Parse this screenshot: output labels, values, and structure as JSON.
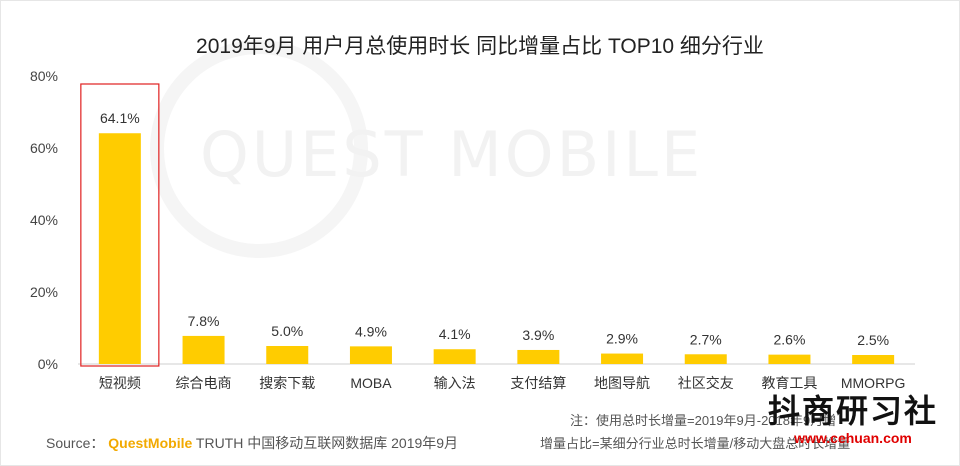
{
  "chart_data": {
    "type": "bar",
    "title": "2019年9月 用户月总使用时长 同比增量占比 TOP10 细分行业",
    "categories": [
      "短视频",
      "综合电商",
      "搜索下载",
      "MOBA",
      "输入法",
      "支付结算",
      "地图导航",
      "社区交友",
      "教育工具",
      "MMORPG"
    ],
    "values": [
      64.1,
      7.8,
      5.0,
      4.9,
      4.1,
      3.9,
      2.9,
      2.7,
      2.6,
      2.5
    ],
    "data_labels": [
      "64.1%",
      "7.8%",
      "5.0%",
      "4.9%",
      "4.1%",
      "3.9%",
      "2.9%",
      "2.7%",
      "2.6%",
      "2.5%"
    ],
    "ylim": [
      0,
      80
    ],
    "y_ticks": [
      "0%",
      "20%",
      "40%",
      "60%",
      "80%"
    ],
    "bar_color": "#FFCC00",
    "highlight_color": "#E02020",
    "highlight_index": 0,
    "grid": false
  },
  "watermark": "QUEST MOBILE",
  "notes": {
    "line1": "注：使用总时长增量=2019年9月-2018年9月增",
    "line2": "增量占比=某细分行业总时长增量/移动大盘总时长增量"
  },
  "source": {
    "label": "Source：",
    "brand": "QuestMobile",
    "text": "TRUTH 中国移动互联网数据库 2019年9月"
  },
  "corner_brand": {
    "name": "抖商研习社",
    "url": "www.cehuan.com"
  }
}
